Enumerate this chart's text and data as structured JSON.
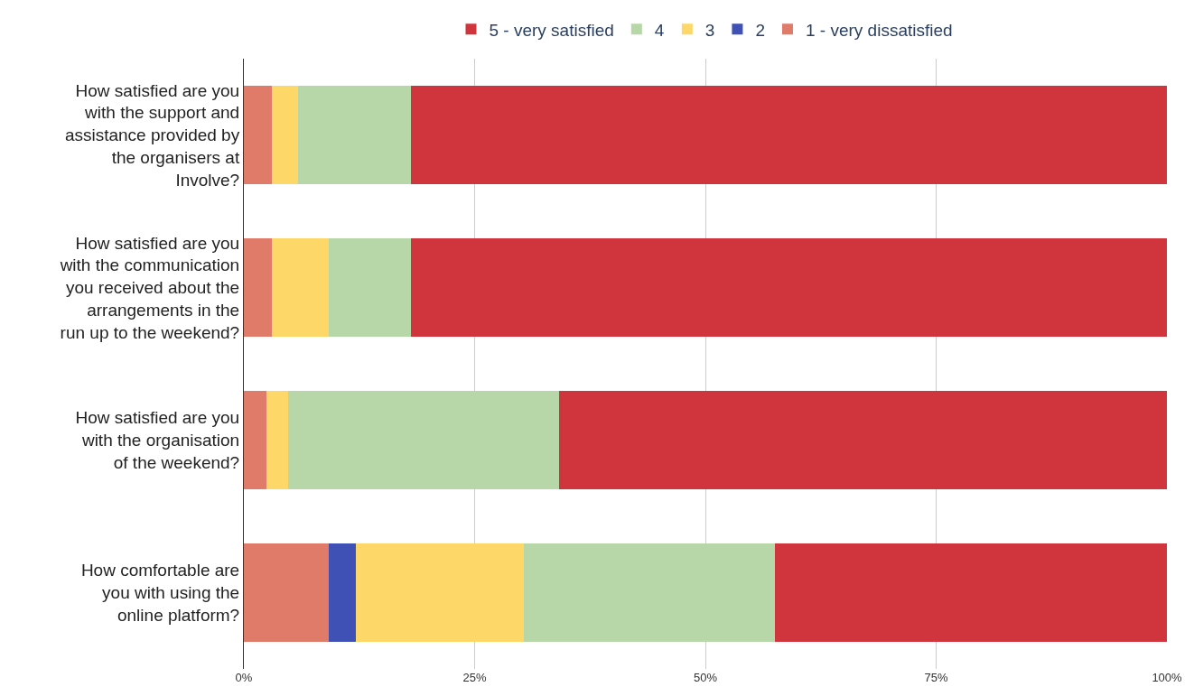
{
  "chart_data": {
    "type": "bar",
    "orientation": "horizontal",
    "stacked": true,
    "categories": [
      "How satisfied are you with the support and assistance provided by the organisers at Involve?",
      "How satisfied are you with the communication you received about the arrangements in the run up to the weekend?",
      "How satisfied are you with the organisation of the weekend?",
      "How comfortable are you with using the online platform?"
    ],
    "series": [
      {
        "name": "1 - very dissatisfied",
        "color": "#e07b6a",
        "values": [
          3.0,
          3.0,
          2.4,
          9.2
        ]
      },
      {
        "name": "2",
        "color": "#3f51b5",
        "values": [
          0,
          0,
          0,
          2.9
        ]
      },
      {
        "name": "3",
        "color": "#fdd868",
        "values": [
          2.9,
          6.2,
          2.4,
          18.2
        ]
      },
      {
        "name": "4",
        "color": "#b7d7a8",
        "values": [
          12.2,
          8.9,
          29.3,
          27.2
        ]
      },
      {
        "name": "5 - very satisfied",
        "color": "#d0353d",
        "values": [
          81.9,
          81.9,
          65.9,
          42.5
        ]
      }
    ],
    "xlim": [
      0,
      100
    ],
    "xticks": [
      {
        "value": 0,
        "label": "0%"
      },
      {
        "value": 25,
        "label": "25%"
      },
      {
        "value": 50,
        "label": "50%"
      },
      {
        "value": 75,
        "label": "75%"
      },
      {
        "value": 100,
        "label": "100%"
      }
    ],
    "grid": "x",
    "legend": "top"
  }
}
